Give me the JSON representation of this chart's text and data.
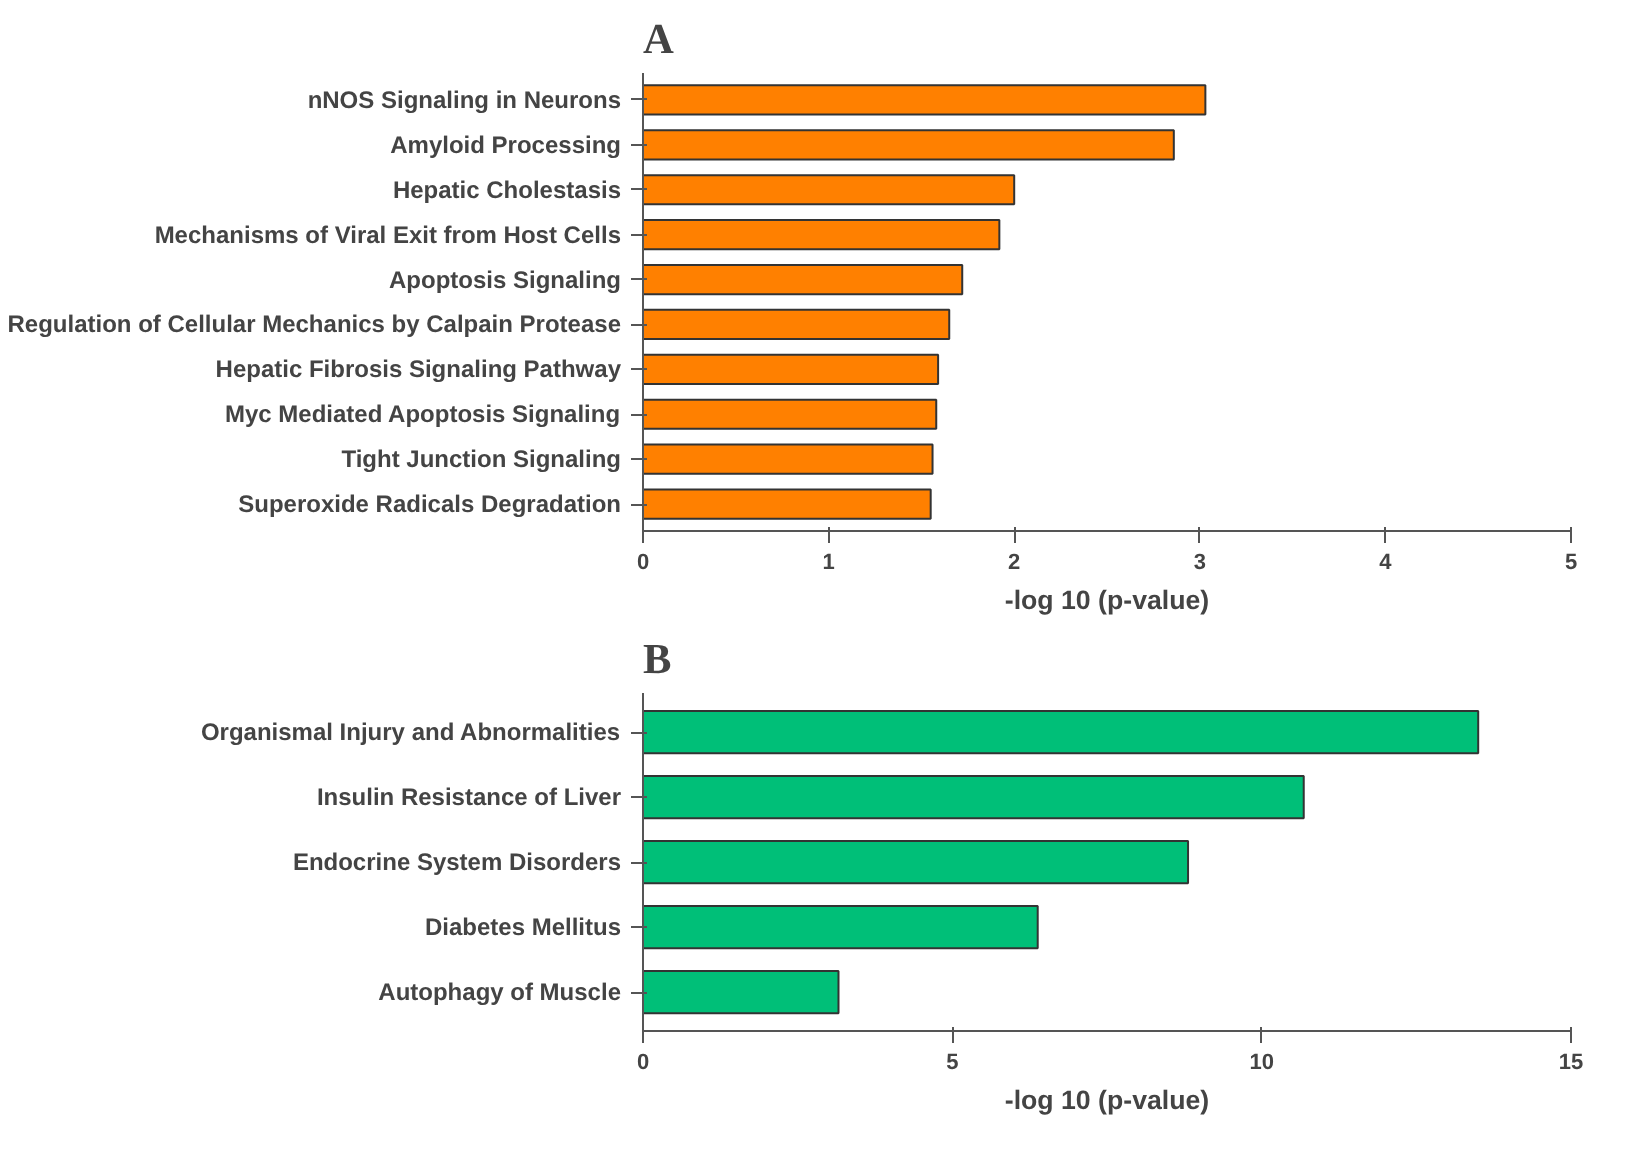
{
  "chart_data": [
    {
      "type": "bar",
      "title": "A",
      "orientation": "horizontal",
      "xlabel": "-log 10 (p-value)",
      "categories": [
        "nNOS Signaling in Neurons",
        "Amyloid Processing",
        "Hepatic Cholestasis",
        "Mechanisms of Viral Exit from Host Cells",
        "Apoptosis Signaling",
        "Regulation of Cellular Mechanics by Calpain Protease",
        "Hepatic Fibrosis Signaling Pathway",
        "Myc Mediated Apoptosis Signaling",
        "Tight Junction Signaling",
        "Superoxide Radicals Degradation"
      ],
      "values": [
        3.03,
        2.86,
        2.0,
        1.92,
        1.72,
        1.65,
        1.59,
        1.58,
        1.56,
        1.55
      ],
      "color": "#ff8000",
      "xlim": [
        0,
        5
      ],
      "xticks": [
        0,
        1,
        2,
        3,
        4,
        5
      ],
      "grid": false
    },
    {
      "type": "bar",
      "title": "B",
      "orientation": "horizontal",
      "xlabel": "-log 10 (p-value)",
      "categories": [
        "Organismal Injury and Abnormalities",
        "Insulin Resistance of Liver",
        "Endocrine System Disorders",
        "Diabetes Mellitus",
        "Autophagy of Muscle"
      ],
      "values": [
        13.5,
        10.68,
        8.81,
        6.38,
        3.16
      ],
      "color": "#00bf78",
      "xlim": [
        0,
        15
      ],
      "xticks": [
        0,
        5,
        10,
        15
      ],
      "grid": false
    }
  ]
}
